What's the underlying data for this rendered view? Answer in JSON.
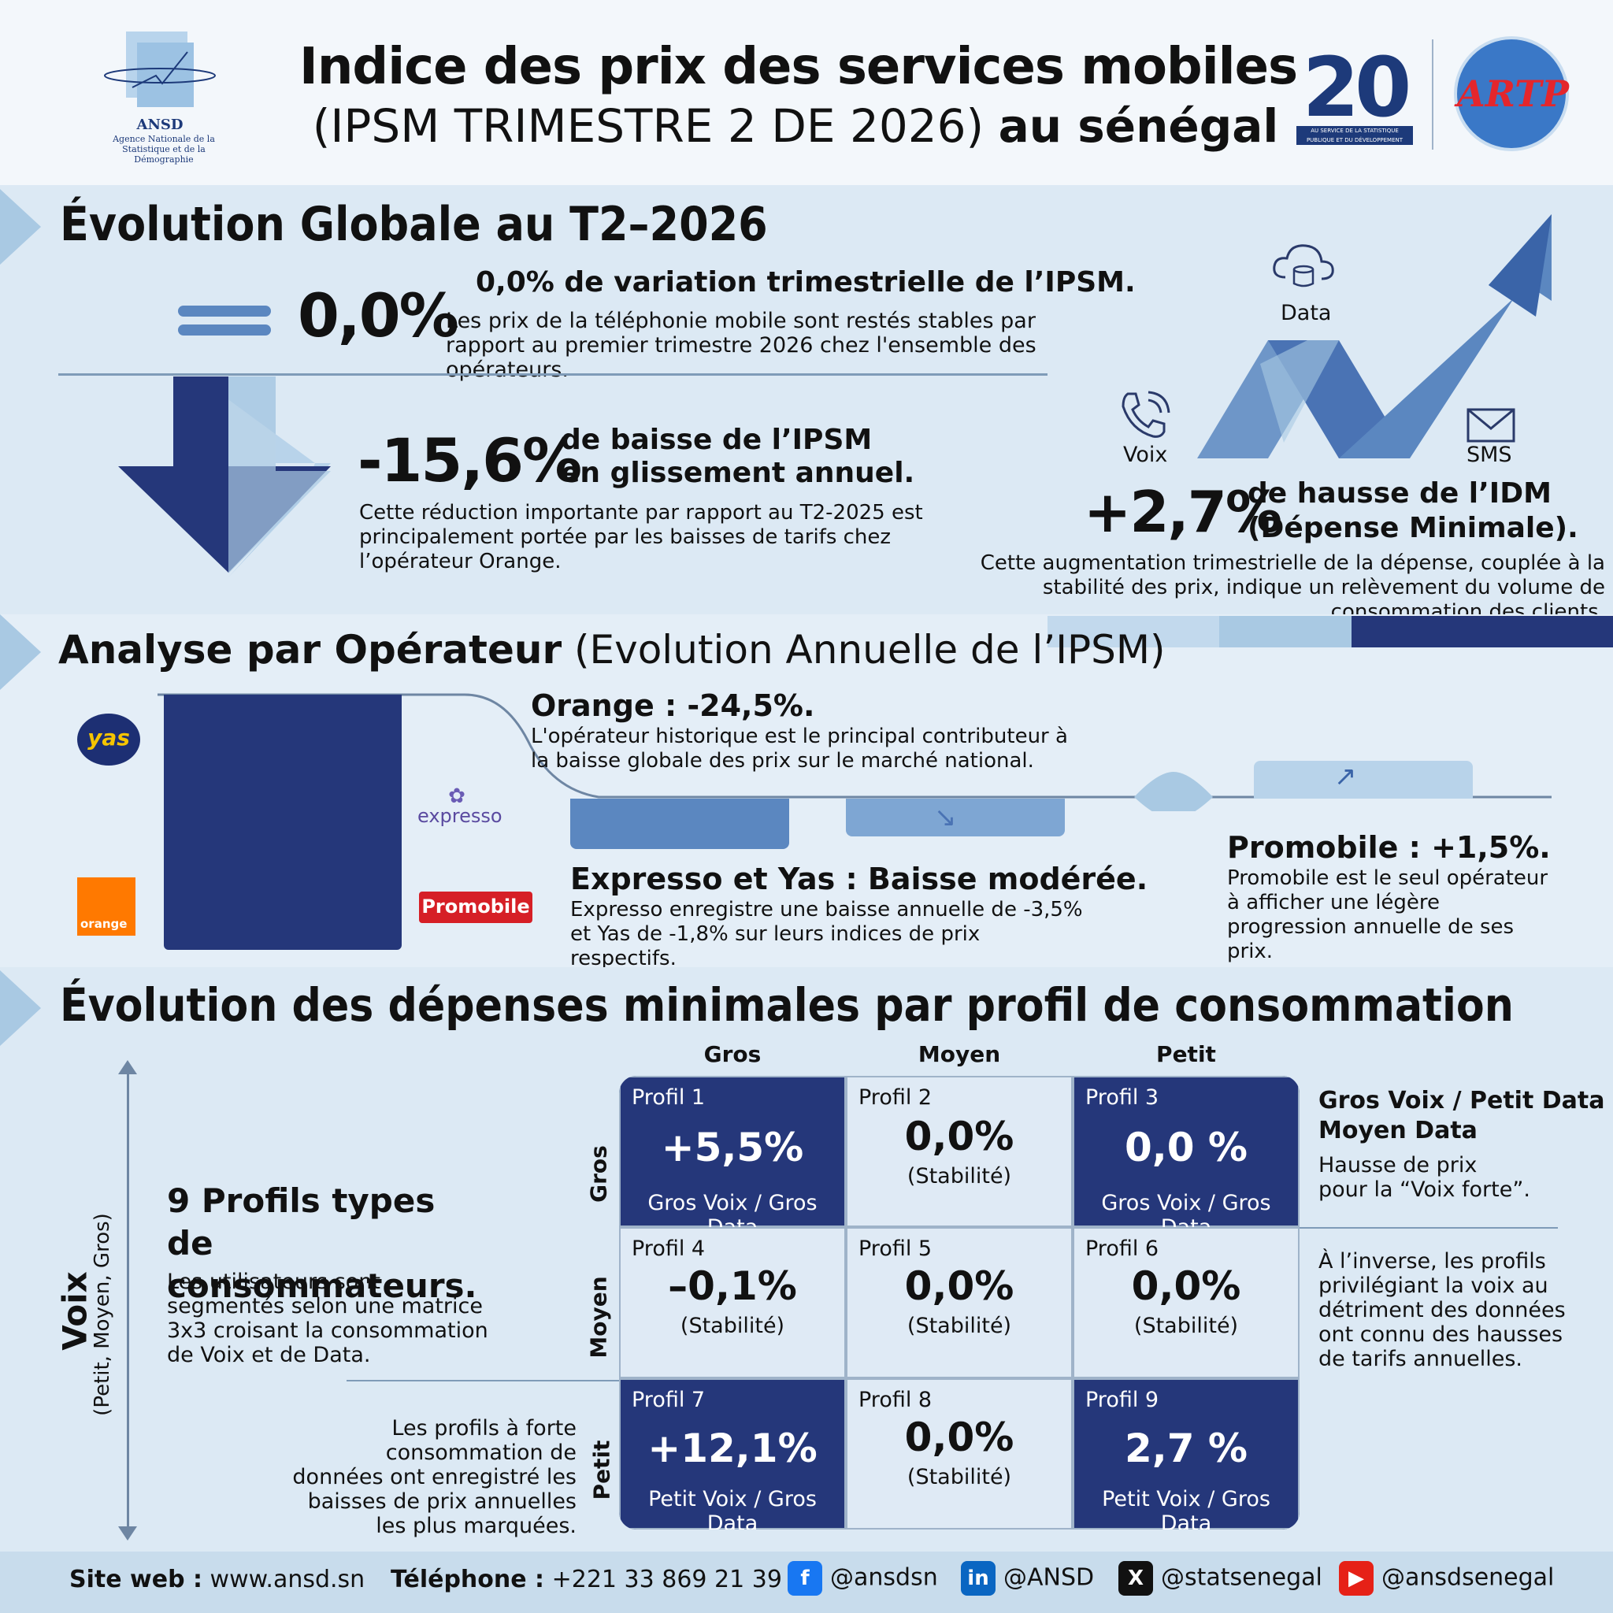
{
  "header": {
    "ansd_logo_text": "ANSD",
    "ansd_subtitle": "Agence Nationale de la Statistique et de la Démographie",
    "title_line1": "Indice des prix des services mobiles",
    "title_line2_a": "(IPSM TRIMESTRE 2 DE 2026)",
    "title_line2_b": "au sénégal",
    "anniv_text": "20",
    "anniv_sub": "AU SERVICE DE LA STATISTIQUE PUBLIQUE ET DU DÉVELOPPEMENT",
    "artp_logo_text": "ARTP"
  },
  "section1": {
    "heading": "Évolution Globale au T2–2026",
    "stat1_value": "0,0%",
    "stat1_title": "0,0% de variation trimestrielle de l’IPSM.",
    "stat1_text": "Les prix de la téléphonie mobile sont restés stables par rapport au premier trimestre 2026 chez l'ensemble des opérateurs.",
    "stat2_value": "-15,6%",
    "stat2_title_a": "de baisse de l’IPSM",
    "stat2_title_b": "en glissement annuel.",
    "stat2_text": "Cette réduction importante par rapport au T2-2025 est principalement portée par les baisses de tarifs chez l’opérateur Orange.",
    "label_data": "Data",
    "label_voix": "Voix",
    "label_sms": "SMS",
    "stat3_value": "+2,7%",
    "stat3_title_a": "de hausse de l’IDM",
    "stat3_title_b": "(Dépense Minimale).",
    "stat3_text": "Cette augmentation trimestrielle de la dépense, couplée à la stabilité des prix, indique un relèvement du volume de consommation des clients."
  },
  "section2": {
    "heading_bold": "Analyse par Opérateur",
    "heading_light": "(Evolution Annuelle de l’IPSM)",
    "logo_yas": "yas",
    "logo_orange": "orange",
    "logo_expresso": "expresso",
    "logo_promobile": "Promobile",
    "orange_title": "Orange : -24,5%.",
    "orange_text": "L'opérateur historique est le principal contributeur à la baisse globale des prix sur le marché national.",
    "expresso_title": "Expresso et Yas : Baisse modérée.",
    "expresso_text": "Expresso enregistre une baisse annuelle de -3,5% et Yas de -1,8% sur leurs indices de prix respectifs.",
    "promobile_title": "Promobile : +1,5%.",
    "promobile_text": "Promobile est le seul opérateur à afficher une légère progression annuelle de ses prix."
  },
  "section3": {
    "heading": "Évolution des dépenses minimales par profil de consommation",
    "col_headers": [
      "Gros",
      "Moyen",
      "Petit"
    ],
    "row_headers": [
      "Gros",
      "Moyen",
      "Petit"
    ],
    "axis_label": "Voix",
    "axis_sub": "(Petit, Moyen, Gros)",
    "profiles_title": "9 Profils types de consommateurs.",
    "profiles_text": "Les utilisateurs sont segmentés selon une matrice 3x3 croisant la consommation de Voix et de Data.",
    "left_note": "Les profils à forte consommation de données ont enregistré les baisses de prix annuelles les plus marquées.",
    "right_title_a": "Gros Voix / Petit Data",
    "right_title_b": "Moyen Data",
    "right_text1": "Hausse de prix pour la “Voix forte”.",
    "right_text2": "À l’inverse, les profils privilégiant la voix au détriment des données ont connu des hausses de tarifs annuelles.",
    "cells": [
      {
        "label": "Profil 1",
        "value": "+5,5%",
        "note": "Gros Voix / Gros Data"
      },
      {
        "label": "Profil 2",
        "value": "0,0%",
        "note": "(Stabilité)"
      },
      {
        "label": "Profil 3",
        "value": "0,0 %",
        "note": "Gros Voix / Gros Data"
      },
      {
        "label": "Profil 4",
        "value": "–0,1%",
        "note": "(Stabilité)"
      },
      {
        "label": "Profil 5",
        "value": "0,0%",
        "note": "(Stabilité)"
      },
      {
        "label": "Profil 6",
        "value": "0,0%",
        "note": "(Stabilité)"
      },
      {
        "label": "Profil 7",
        "value": "+12,1%",
        "note": "Petit Voix / Gros Data"
      },
      {
        "label": "Profil 8",
        "value": "0,0%",
        "note": "(Stabilité)"
      },
      {
        "label": "Profil 9",
        "value": "2,7 %",
        "note": "Petit Voix / Gros Data"
      }
    ]
  },
  "footer": {
    "site_label": "Site web :",
    "site_value": "www.ansd.sn",
    "tel_label": "Téléphone :",
    "tel_value": "+221 33 869 21 39",
    "facebook": "@ansdsn",
    "linkedin": "@ANSD",
    "x": "@statsenegal",
    "youtube": "@ansdsenegal"
  },
  "colors": {
    "dark_navy": "#25377a",
    "mid_blue": "#5b87c0",
    "light_blue": "#a9c9e3",
    "orange": "#ff7900"
  }
}
